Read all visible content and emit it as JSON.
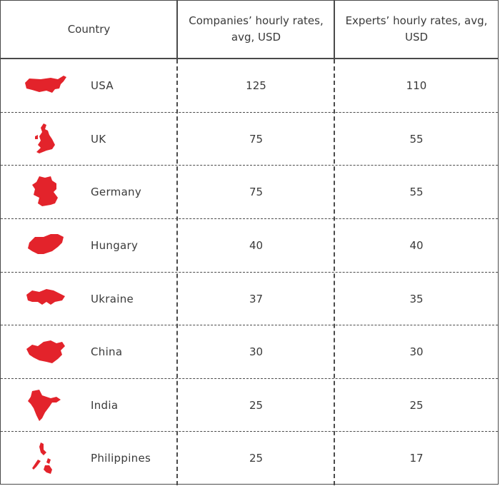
{
  "table": {
    "headers": {
      "country": "Country",
      "companies": "Companies’ hourly rates, avg, USD",
      "experts": "Experts’ hourly rates, avg, USD"
    },
    "map_color": "#e3232b",
    "rows": [
      {
        "country": "USA",
        "companies": "125",
        "experts": "110",
        "icon": "usa-map-icon"
      },
      {
        "country": "UK",
        "companies": "75",
        "experts": "55",
        "icon": "uk-map-icon"
      },
      {
        "country": "Germany",
        "companies": "75",
        "experts": "55",
        "icon": "germany-map-icon"
      },
      {
        "country": "Hungary",
        "companies": "40",
        "experts": "40",
        "icon": "hungary-map-icon"
      },
      {
        "country": "Ukraine",
        "companies": "37",
        "experts": "35",
        "icon": "ukraine-map-icon"
      },
      {
        "country": "China",
        "companies": "30",
        "experts": "30",
        "icon": "china-map-icon"
      },
      {
        "country": "India",
        "companies": "25",
        "experts": "25",
        "icon": "india-map-icon"
      },
      {
        "country": "Philippines",
        "companies": "25",
        "experts": "17",
        "icon": "philippines-map-icon"
      }
    ]
  }
}
